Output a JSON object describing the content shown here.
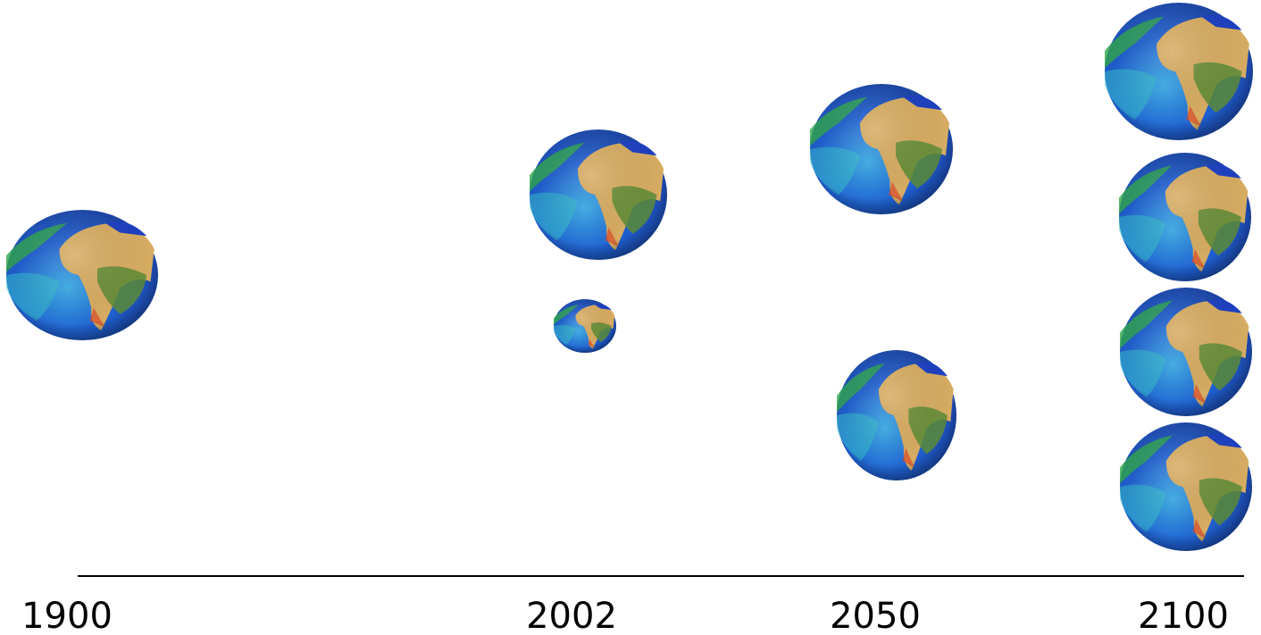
{
  "timeline": {
    "labels": [
      "1900",
      "2002",
      "2050",
      "2100"
    ]
  }
}
